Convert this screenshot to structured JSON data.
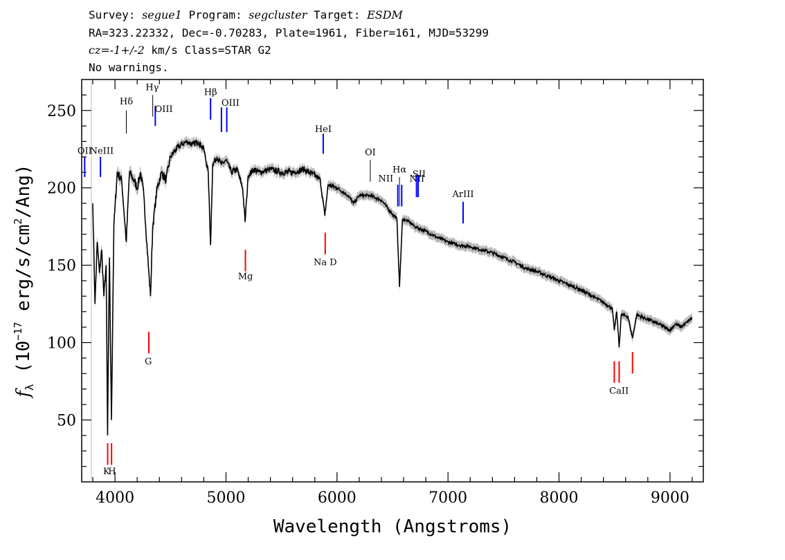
{
  "header": {
    "line1": {
      "survey_label": "Survey:",
      "survey": "segue1",
      "program_label": "Program:",
      "program": "segcluster",
      "target_label": "Target:",
      "target": "ESDM"
    },
    "line2": "RA=323.22332, Dec=-0.70283, Plate=1961, Fiber=161, MJD=53299",
    "line3": {
      "cz_label": "cz=",
      "cz_value": "-1+/-2",
      "cz_unit": "km/s Class=STAR G2"
    },
    "line4": "No warnings."
  },
  "chart_data": {
    "type": "line",
    "xlabel": "Wavelength (Angstroms)",
    "ylabel": "f_λ (10^-17 erg/s/cm^2/Ang)",
    "xlim": [
      3700,
      9300
    ],
    "ylim": [
      10,
      270
    ],
    "x_ticks": [
      4000,
      5000,
      6000,
      7000,
      8000,
      9000
    ],
    "y_ticks": [
      50,
      100,
      150,
      200,
      250
    ],
    "grid": false,
    "spectrum_color": "#000000",
    "error_color": "#b0b0b0",
    "emission_color": "#0000ff",
    "absorption_color": "#ff0000",
    "spectrum": [
      [
        3800,
        190
      ],
      [
        3820,
        125
      ],
      [
        3840,
        165
      ],
      [
        3860,
        145
      ],
      [
        3880,
        160
      ],
      [
        3900,
        130
      ],
      [
        3920,
        150
      ],
      [
        3933,
        40
      ],
      [
        3950,
        155
      ],
      [
        3968,
        50
      ],
      [
        3990,
        175
      ],
      [
        4020,
        210
      ],
      [
        4060,
        205
      ],
      [
        4102,
        165
      ],
      [
        4130,
        210
      ],
      [
        4170,
        205
      ],
      [
        4200,
        200
      ],
      [
        4230,
        210
      ],
      [
        4260,
        195
      ],
      [
        4300,
        150
      ],
      [
        4320,
        130
      ],
      [
        4340,
        175
      ],
      [
        4380,
        200
      ],
      [
        4420,
        210
      ],
      [
        4460,
        205
      ],
      [
        4500,
        220
      ],
      [
        4550,
        225
      ],
      [
        4600,
        228
      ],
      [
        4650,
        230
      ],
      [
        4700,
        228
      ],
      [
        4750,
        230
      ],
      [
        4800,
        225
      ],
      [
        4840,
        210
      ],
      [
        4861,
        163
      ],
      [
        4880,
        215
      ],
      [
        4920,
        220
      ],
      [
        4960,
        215
      ],
      [
        5000,
        218
      ],
      [
        5050,
        210
      ],
      [
        5100,
        212
      ],
      [
        5150,
        200
      ],
      [
        5172,
        178
      ],
      [
        5200,
        208
      ],
      [
        5250,
        212
      ],
      [
        5300,
        210
      ],
      [
        5400,
        212
      ],
      [
        5500,
        210
      ],
      [
        5600,
        210
      ],
      [
        5700,
        212
      ],
      [
        5800,
        208
      ],
      [
        5850,
        205
      ],
      [
        5890,
        182
      ],
      [
        5920,
        202
      ],
      [
        6000,
        200
      ],
      [
        6100,
        195
      ],
      [
        6150,
        190
      ],
      [
        6200,
        195
      ],
      [
        6300,
        195
      ],
      [
        6400,
        192
      ],
      [
        6500,
        183
      ],
      [
        6540,
        180
      ],
      [
        6563,
        136
      ],
      [
        6590,
        180
      ],
      [
        6650,
        178
      ],
      [
        6700,
        175
      ],
      [
        6800,
        172
      ],
      [
        6900,
        168
      ],
      [
        7000,
        165
      ],
      [
        7100,
        163
      ],
      [
        7200,
        162
      ],
      [
        7300,
        160
      ],
      [
        7400,
        158
      ],
      [
        7500,
        155
      ],
      [
        7600,
        152
      ],
      [
        7700,
        148
      ],
      [
        7800,
        146
      ],
      [
        7900,
        143
      ],
      [
        8000,
        140
      ],
      [
        8100,
        137
      ],
      [
        8200,
        134
      ],
      [
        8300,
        130
      ],
      [
        8400,
        126
      ],
      [
        8480,
        122
      ],
      [
        8498,
        108
      ],
      [
        8520,
        120
      ],
      [
        8542,
        97
      ],
      [
        8560,
        118
      ],
      [
        8620,
        117
      ],
      [
        8662,
        103
      ],
      [
        8700,
        118
      ],
      [
        8800,
        115
      ],
      [
        8900,
        112
      ],
      [
        8950,
        110
      ],
      [
        9000,
        108
      ],
      [
        9050,
        112
      ],
      [
        9100,
        110
      ],
      [
        9150,
        113
      ],
      [
        9200,
        116
      ]
    ],
    "lines": [
      {
        "label": "OII",
        "x": 3727,
        "kind": "emission",
        "y0": 207,
        "y1": 220,
        "lx": 3727,
        "ly": 222
      },
      {
        "label": "NeIII",
        "x": 3869,
        "kind": "emission",
        "y0": 207,
        "y1": 220,
        "lx": 3880,
        "ly": 222
      },
      {
        "label": "Hδ",
        "x": 4102,
        "kind": "balmer",
        "y0": 235,
        "y1": 250,
        "lx": 4102,
        "ly": 254
      },
      {
        "label": "Hγ",
        "x": 4340,
        "kind": "balmer",
        "y0": 246,
        "y1": 260,
        "lx": 4335,
        "ly": 263
      },
      {
        "label": "OIII",
        "x": 4363,
        "kind": "emission",
        "y0": 240,
        "y1": 253,
        "lx": 4440,
        "ly": 249
      },
      {
        "label": "Hβ",
        "x": 4861,
        "kind": "emission",
        "y0": 244,
        "y1": 258,
        "lx": 4861,
        "ly": 260
      },
      {
        "label": "OIII",
        "x": 4959,
        "kind": "emission",
        "y0": 236,
        "y1": 252,
        "lx": 5040,
        "ly": 253
      },
      {
        "label": "OIII",
        "x": 5007,
        "kind": "emission",
        "y0": 236,
        "y1": 252,
        "lx": "",
        "ly": ""
      },
      {
        "label": "HeI",
        "x": 5876,
        "kind": "emission",
        "y0": 222,
        "y1": 235,
        "lx": 5876,
        "ly": 236
      },
      {
        "label": "OI",
        "x": 6300,
        "kind": "balmer",
        "y0": 204,
        "y1": 218,
        "lx": 6300,
        "ly": 221
      },
      {
        "label": "NII",
        "x": 6548,
        "kind": "emission",
        "y0": 188,
        "y1": 202,
        "lx": 6440,
        "ly": 204
      },
      {
        "label": "Hα",
        "x": 6563,
        "kind": "balmer",
        "y0": 188,
        "y1": 207,
        "lx": 6563,
        "ly": 210
      },
      {
        "label": "NII",
        "x": 6583,
        "kind": "emission",
        "y0": 188,
        "y1": 202,
        "lx": 6720,
        "ly": 204
      },
      {
        "label": "SII",
        "x": 6716,
        "kind": "emission",
        "y0": 194,
        "y1": 208,
        "lx": 6740,
        "ly": 207
      },
      {
        "label": "SII",
        "x": 6731,
        "kind": "emission",
        "y0": 194,
        "y1": 208,
        "lx": "",
        "ly": ""
      },
      {
        "label": "ArIII",
        "x": 7136,
        "kind": "emission",
        "y0": 177,
        "y1": 191,
        "lx": 7136,
        "ly": 194
      },
      {
        "label": "K",
        "x": 3934,
        "kind": "absorption",
        "y0": 21,
        "y1": 35,
        "lx": 3924,
        "ly": 15
      },
      {
        "label": "H",
        "x": 3969,
        "kind": "absorption",
        "y0": 21,
        "y1": 35,
        "lx": 3974,
        "ly": 15
      },
      {
        "label": "G",
        "x": 4305,
        "kind": "absorption",
        "y0": 93,
        "y1": 107,
        "lx": 4300,
        "ly": 86
      },
      {
        "label": "Mg",
        "x": 5175,
        "kind": "absorption",
        "y0": 146,
        "y1": 160,
        "lx": 5175,
        "ly": 141
      },
      {
        "label": "Na D",
        "x": 5894,
        "kind": "absorption",
        "y0": 157,
        "y1": 171,
        "lx": 5894,
        "ly": 150
      },
      {
        "label": "CaII",
        "x": 8498,
        "kind": "absorption",
        "y0": 74,
        "y1": 88,
        "lx": 8540,
        "ly": 67
      },
      {
        "label": "",
        "x": 8542,
        "kind": "absorption",
        "y0": 74,
        "y1": 88,
        "lx": "",
        "ly": ""
      },
      {
        "label": "",
        "x": 8662,
        "kind": "absorption",
        "y0": 80,
        "y1": 94,
        "lx": "",
        "ly": ""
      }
    ]
  }
}
